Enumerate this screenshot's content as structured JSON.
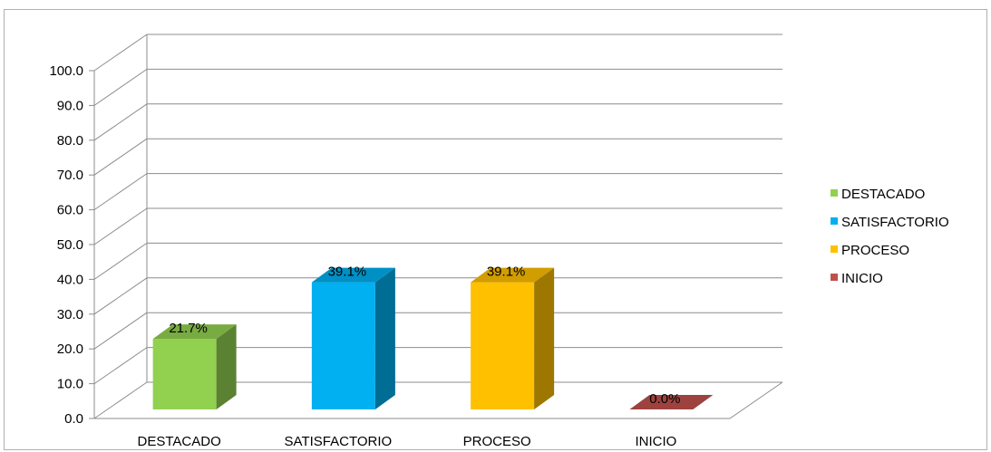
{
  "chart_data": {
    "type": "bar",
    "style": "3d-column",
    "categories": [
      "DESTACADO",
      "SATISFACTORIO",
      "PROCESO",
      "INICIO"
    ],
    "values": [
      21.7,
      39.1,
      39.1,
      0.0
    ],
    "data_labels": [
      "21.7%",
      "39.1%",
      "39.1%",
      "0.0%"
    ],
    "colors": [
      "#92d050",
      "#00b0f0",
      "#ffc000",
      "#c0504d"
    ],
    "y_ticks": [
      "0.0",
      "10.0",
      "20.0",
      "30.0",
      "40.0",
      "50.0",
      "60.0",
      "70.0",
      "80.0",
      "90.0",
      "100.0"
    ],
    "ylim": [
      0,
      100
    ],
    "grid": true,
    "legend": {
      "position": "right",
      "entries": [
        "DESTACADO",
        "SATISFACTORIO",
        "PROCESO",
        "INICIO"
      ]
    },
    "title": "",
    "xlabel": "",
    "ylabel": ""
  }
}
